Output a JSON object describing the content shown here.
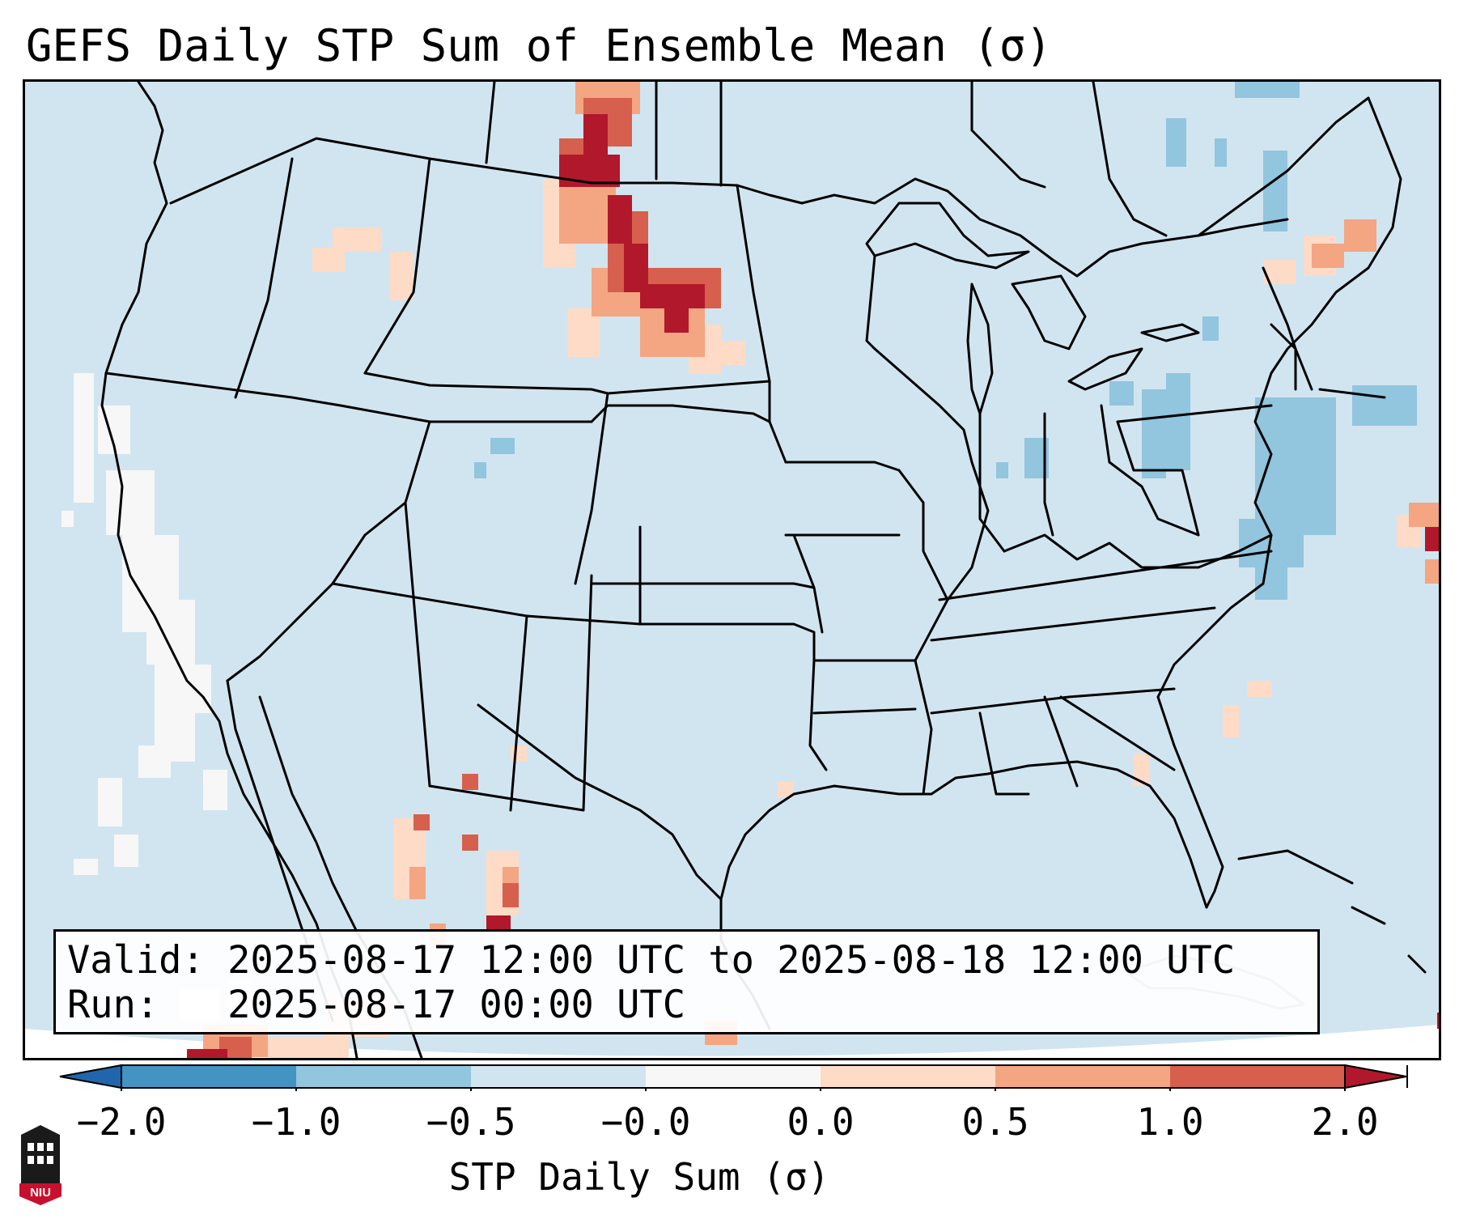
{
  "title": "GEFS Daily STP Sum of Ensemble Mean (σ)",
  "info": {
    "valid_line": "Valid: 2025-08-17 12:00 UTC to 2025-08-18 12:00 UTC",
    "run_line": "Run:   2025-08-17 00:00 UTC"
  },
  "colorbar": {
    "label": "STP Daily Sum (σ)",
    "ticks": [
      "−2.0",
      "−1.0",
      "−0.5",
      "−0.0",
      "0.0",
      "0.5",
      "1.0",
      "2.0"
    ],
    "bin_colors": [
      "#4393c3",
      "#92c5de",
      "#d1e5f0",
      "#f7f7f7",
      "#fddbc7",
      "#f4a582",
      "#d6604d"
    ],
    "extend_low_color": "#2166ac",
    "extend_high_color": "#b2182b"
  },
  "map": {
    "region": "CONUS",
    "background_color": "#d1e5f0",
    "offmap_color": "#ffffff",
    "line_color": "#000000"
  },
  "logo": {
    "text": "NIU"
  }
}
